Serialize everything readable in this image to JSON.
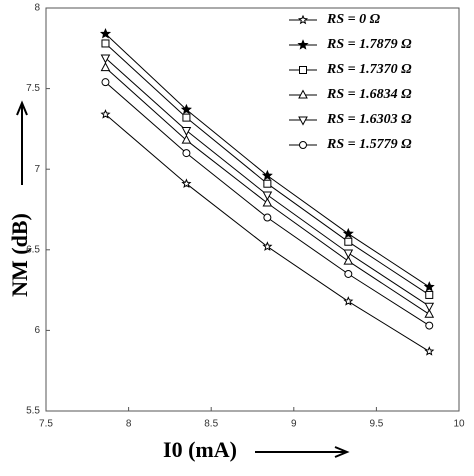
{
  "chart_data": {
    "type": "line",
    "x_label": "I0 (mA)",
    "y_label": "NM (dB)",
    "x": [
      7.86,
      8.35,
      8.84,
      9.33,
      9.82
    ],
    "series": [
      {
        "name": "RS = 0 Ω",
        "color": "#000000",
        "marker": "star",
        "values": [
          7.34,
          6.91,
          6.52,
          6.18,
          5.87
        ]
      },
      {
        "name": "RS = 1.7879 Ω",
        "color": "#000000",
        "marker": "filled-star",
        "values": [
          7.84,
          7.37,
          6.96,
          6.6,
          6.27
        ]
      },
      {
        "name": "RS = 1.7370 Ω",
        "color": "#000000",
        "marker": "square",
        "values": [
          7.78,
          7.32,
          6.91,
          6.55,
          6.22
        ]
      },
      {
        "name": "RS = 1.6834 Ω",
        "color": "#000000",
        "marker": "triangle",
        "values": [
          7.63,
          7.18,
          6.79,
          6.43,
          6.1
        ]
      },
      {
        "name": "RS = 1.6303 Ω",
        "color": "#000000",
        "marker": "down-triangle",
        "values": [
          7.69,
          7.24,
          6.84,
          6.48,
          6.15
        ]
      },
      {
        "name": "RS = 1.5779 Ω",
        "color": "#000000",
        "marker": "circle",
        "values": [
          7.54,
          7.1,
          6.7,
          6.35,
          6.03
        ]
      }
    ],
    "xlim": [
      7.5,
      10
    ],
    "xticks": [
      7.5,
      8,
      8.5,
      9,
      9.5,
      10
    ],
    "ylim": [
      5.5,
      8
    ],
    "yticks": [
      5.5,
      6,
      6.5,
      7,
      7.5,
      8
    ],
    "grid": false,
    "legend": "upper right"
  }
}
